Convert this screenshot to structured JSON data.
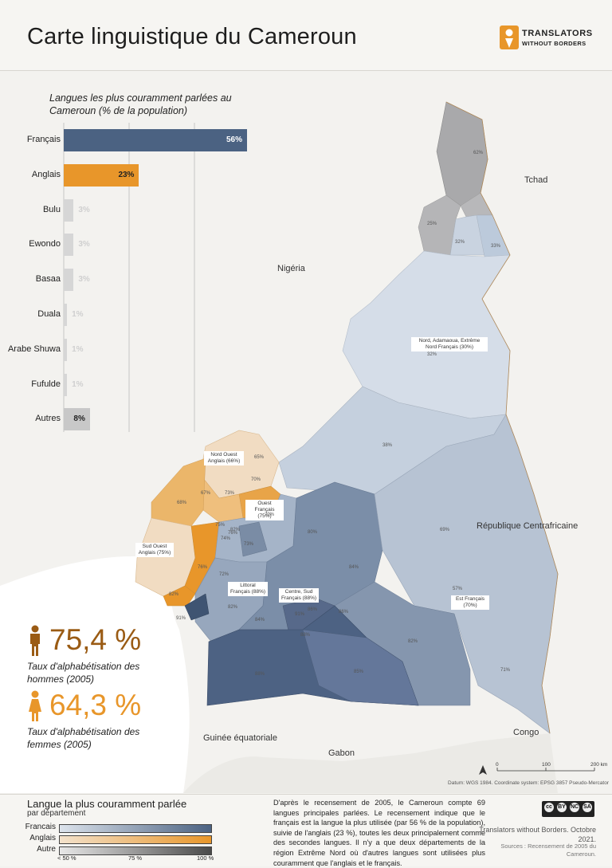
{
  "header": {
    "title": "Carte linguistique du Cameroun",
    "org_line1": "TRANSLATORS",
    "org_line2": "WITHOUT BORDERS"
  },
  "colors": {
    "francais_dark": "#4b6282",
    "francais_light": "#c9d3e0",
    "anglais_dark": "#e8962a",
    "anglais_light": "#f1dcc2",
    "autre_dark": "#8b8b8b",
    "autre_light": "#d6d6d6",
    "sea": "#ffffff",
    "land": "#f1f0ed"
  },
  "countries": {
    "tchad": "Tchad",
    "nigeria": "Nigéria",
    "rca": "République Centrafricaine",
    "congo": "Congo",
    "gabon": "Gabon",
    "guinee": "Guinée équatoriale"
  },
  "bar_chart": {
    "title": "Langues les plus couramment parlées au Cameroun (% de la population)",
    "bars": [
      {
        "label": "Français",
        "value": 56,
        "text": "56%",
        "color": "#4b6282",
        "textcolor": "#ffffff"
      },
      {
        "label": "Anglais",
        "value": 23,
        "text": "23%",
        "color": "#e8962a",
        "textcolor": "#222222"
      },
      {
        "label": "Bulu",
        "value": 3,
        "text": "3%",
        "color": "#d6d6d6",
        "textcolor": "#cfcfcf"
      },
      {
        "label": "Ewondo",
        "value": 3,
        "text": "3%",
        "color": "#d6d6d6",
        "textcolor": "#cfcfcf"
      },
      {
        "label": "Basaa",
        "value": 3,
        "text": "3%",
        "color": "#d6d6d6",
        "textcolor": "#cfcfcf"
      },
      {
        "label": "Duala",
        "value": 1,
        "text": "1%",
        "color": "#d6d6d6",
        "textcolor": "#cfcfcf"
      },
      {
        "label": "Arabe Shuwa",
        "value": 1,
        "text": "1%",
        "color": "#d6d6d6",
        "textcolor": "#cfcfcf"
      },
      {
        "label": "Fufulde",
        "value": 1,
        "text": "1%",
        "color": "#d6d6d6",
        "textcolor": "#cfcfcf"
      },
      {
        "label": "Autres",
        "value": 8,
        "text": "8%",
        "color": "#c8c8c8",
        "textcolor": "#222222"
      }
    ]
  },
  "chart_data": {
    "type": "bar",
    "title": "Langues les plus couramment parlées au Cameroun (% de la population)",
    "categories": [
      "Français",
      "Anglais",
      "Bulu",
      "Ewondo",
      "Basaa",
      "Duala",
      "Arabe Shuwa",
      "Fufulde",
      "Autres"
    ],
    "values": [
      56,
      23,
      3,
      3,
      3,
      1,
      1,
      1,
      8
    ],
    "orientation": "horizontal"
  },
  "regions": {
    "nord": "Nord, Adamaoua, Extrême Nord Français (30%)",
    "nord_ouest": "Nord Ouest Anglais (66%)",
    "ouest": "Ouest Français (75%)",
    "sud_ouest": "Sud Ouest Anglais (75%)",
    "littoral": "Littoral Français (88%)",
    "centre_sud": "Centre, Sud Français (88%)",
    "est": "Est Français (70%)"
  },
  "dept_values": [
    "62%",
    "25%",
    "32%",
    "33%",
    "32%",
    "38%",
    "65%",
    "67%",
    "73%",
    "70%",
    "68%",
    "70%",
    "75%",
    "76%",
    "82%",
    "73%",
    "74%",
    "80%",
    "69%",
    "72%",
    "76%",
    "82%",
    "84%",
    "84%",
    "86%",
    "86%",
    "88%",
    "91%",
    "82%",
    "82%",
    "57%",
    "71%",
    "88%",
    "85%",
    "91%"
  ],
  "stats": {
    "men_value": "75,4 %",
    "men_label": "Taux d'alphabétisation des hommes (2005)",
    "women_value": "64,3 %",
    "women_label": "Taux d'alphabétisation des femmes (2005)",
    "men_color": "#9a5b14",
    "women_color": "#e8962a"
  },
  "legend": {
    "title": "Langue la plus couramment parlée",
    "subtitle": "par département",
    "rows": [
      {
        "label": "Francais"
      },
      {
        "label": "Anglais"
      },
      {
        "label": "Autre"
      }
    ],
    "tick_min": "< 50 %",
    "tick_mid": "75 %",
    "tick_max": "100 %"
  },
  "note": "D'après le recensement de 2005, le Cameroun compte 69 langues principales parlées. Le recensement indique que le français est la langue la plus utilisée (par 56 % de la population), suivie de l'anglais (23 %), toutes les deux principalement comme des secondes langues. Il n'y a que deux départements de la région Extrême Nord où d'autres langues sont utilisées plus couramment que l'anglais et le français.",
  "credit": "Translators without Borders. Octobre 2021.",
  "sources": "Sources : Recensement de 2005 du Cameroun.",
  "datum": "Datum: WGS 1984. Coordinate system: EPSG 3857 Pseudo-Mercator",
  "scale": {
    "t0": "0",
    "t1": "100",
    "t2": "200 km"
  },
  "license": {
    "a": "cc",
    "b": "BY",
    "c": "NC",
    "d": "SA"
  }
}
